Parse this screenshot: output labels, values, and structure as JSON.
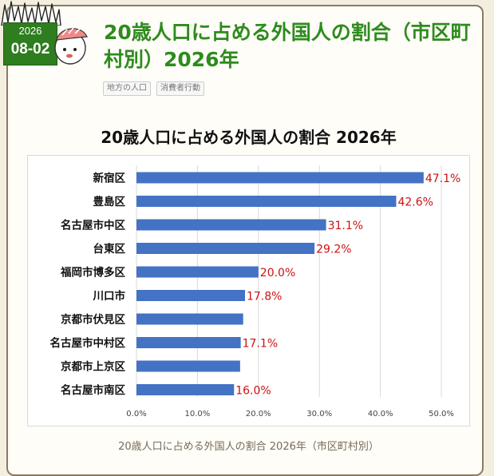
{
  "date_badge": {
    "year": "2026",
    "month_day": "08-02"
  },
  "post": {
    "title": "20歳人口に占める外国人の割合（市区町村別）2026年",
    "tags": [
      "地方の人口",
      "消費者行動"
    ]
  },
  "chart_data": {
    "type": "bar",
    "orientation": "horizontal",
    "title": "20歳人口に占める外国人の割合 2026年",
    "categories": [
      "新宿区",
      "豊島区",
      "名古屋市中区",
      "台東区",
      "福岡市博多区",
      "川口市",
      "京都市伏見区",
      "名古屋市中村区",
      "京都市上京区",
      "名古屋市南区"
    ],
    "values": [
      47.1,
      42.6,
      31.1,
      29.2,
      20.0,
      17.8,
      17.5,
      17.1,
      17.0,
      16.0
    ],
    "data_labels": [
      "47.1%",
      "42.6%",
      "31.1%",
      "29.2%",
      "20.0%",
      "17.8%",
      "",
      "17.1%",
      "",
      "16.0%"
    ],
    "x_ticks": [
      "0.0%",
      "10.0%",
      "20.0%",
      "30.0%",
      "40.0%",
      "50.0%"
    ],
    "xlim": [
      0,
      50
    ],
    "xlabel": "",
    "ylabel": "",
    "grid": true,
    "legend": "none",
    "bar_color": "#4472c4",
    "label_color": "#cc1111"
  },
  "caption": "20歳人口に占める外国人の割合 2026年（市区町村別）",
  "colors": {
    "title_green": "#2e8b1e",
    "badge_green": "#2e7d1e"
  }
}
